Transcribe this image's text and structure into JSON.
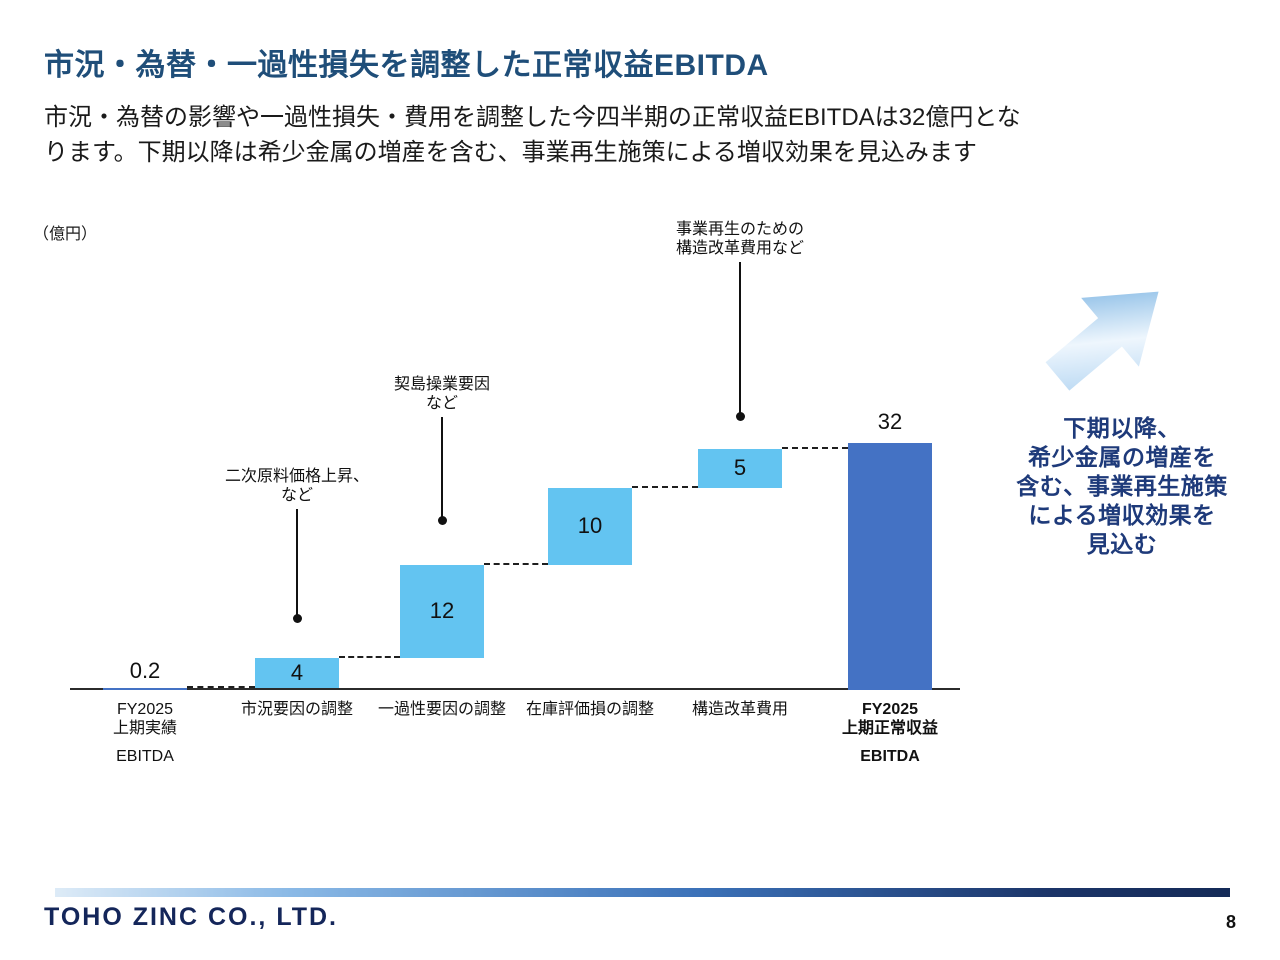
{
  "slide": {
    "title": "市況・為替・一過性損失を調整した正常収益EBITDA",
    "body": {
      "line1": "市況・為替の影響や一過性損失・費用を調整した今四半期の正常収益EBITDAは32億円とな",
      "line2": "ります。下期以降は希少金属の増産を含む、事業再生施策による増収効果を見込みます"
    },
    "unit_label": "（億円）"
  },
  "chart_data": {
    "type": "bar",
    "subtype": "waterfall",
    "title": "市況・為替・一過性損失を調整した正常収益EBITDA",
    "unit": "億円",
    "ylim": [
      0,
      35
    ],
    "grid": false,
    "legend": "none",
    "categories": [
      [
        "FY2025",
        "上期実績",
        "EBITDA"
      ],
      [
        "市況要因の調整"
      ],
      [
        "一過性要因の調整"
      ],
      [
        "在庫評価損の調整"
      ],
      [
        "構造改革費用"
      ],
      [
        "FY2025",
        "上期正常収益",
        "EBITDA"
      ]
    ],
    "values": [
      0.2,
      4,
      12,
      10,
      5,
      32
    ],
    "bar_types": [
      "start",
      "increase",
      "increase",
      "increase",
      "increase",
      "total"
    ],
    "label_positions": [
      "base",
      "inside",
      "inside",
      "inside",
      "inside",
      "above"
    ],
    "colors": {
      "start": "#4472c4",
      "increase": "#63c4f1",
      "total": "#4472c4"
    },
    "annotations": [
      {
        "lines": [
          "二次原料価格上昇、",
          "など"
        ],
        "slot": 1
      },
      {
        "lines": [
          "契島操業要因",
          "など"
        ],
        "slot": 2
      },
      {
        "lines": [
          "事業再生のための",
          "構造改革費用など"
        ],
        "slot": 4
      }
    ]
  },
  "right_note": {
    "lines": [
      "下期以降、",
      "希少金属の増産を",
      "含む、事業再生施策",
      "による増収効果を",
      "見込む"
    ]
  },
  "footer": {
    "company": "TOHO ZINC CO., LTD.",
    "page": "8"
  },
  "colors": {
    "title_blue": "#1f4e79",
    "note_blue": "#1e3a7a",
    "bar_light_blue": "#63c4f1",
    "bar_dark_blue": "#4472c4"
  }
}
